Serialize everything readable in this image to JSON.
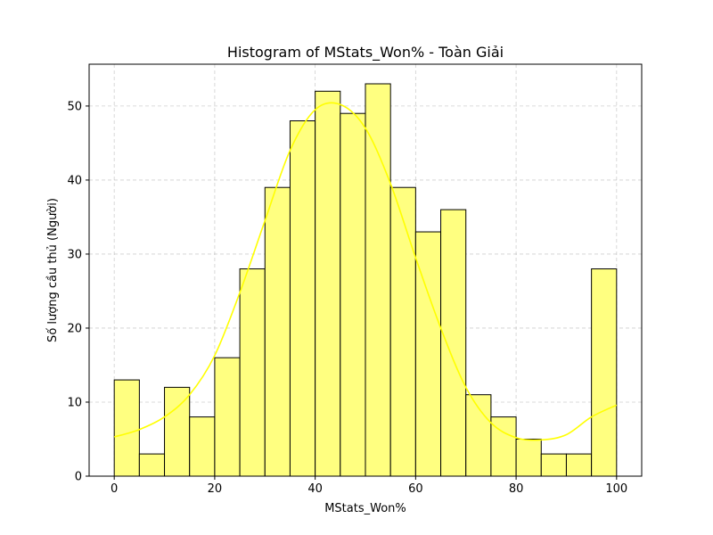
{
  "chart_data": {
    "type": "bar",
    "title": "Histogram of MStats_Won% - Toàn Giải",
    "xlabel": "MStats_Won%",
    "ylabel": "Số lượng cầu thủ (Người)",
    "xlim": [
      -5,
      105
    ],
    "ylim": [
      0,
      55.65
    ],
    "xticks": [
      0,
      20,
      40,
      60,
      80,
      100
    ],
    "yticks": [
      0,
      10,
      20,
      30,
      40,
      50
    ],
    "grid": true,
    "bar_color": "#ffff80",
    "bar_edge_color": "#000000",
    "kde_color": "#ffff00",
    "bin_edges": [
      0,
      5,
      10,
      15,
      20,
      25,
      30,
      35,
      40,
      45,
      50,
      55,
      60,
      65,
      70,
      75,
      80,
      85,
      90,
      95,
      100
    ],
    "values": [
      13,
      3,
      12,
      8,
      16,
      28,
      39,
      48,
      52,
      49,
      53,
      39,
      33,
      36,
      11,
      8,
      5,
      3,
      3,
      28
    ],
    "kde": {
      "x": [
        0,
        5,
        10,
        15,
        20,
        25,
        30,
        35,
        40,
        45,
        50,
        55,
        60,
        65,
        70,
        75,
        80,
        85,
        90,
        95,
        100
      ],
      "y": [
        5.3,
        6.3,
        8.0,
        11.0,
        16.3,
        24.8,
        34.5,
        44.0,
        49.5,
        50.2,
        47.0,
        39.5,
        29.5,
        20.0,
        12.0,
        7.2,
        5.2,
        4.9,
        5.6,
        8.0,
        9.6
      ]
    }
  }
}
